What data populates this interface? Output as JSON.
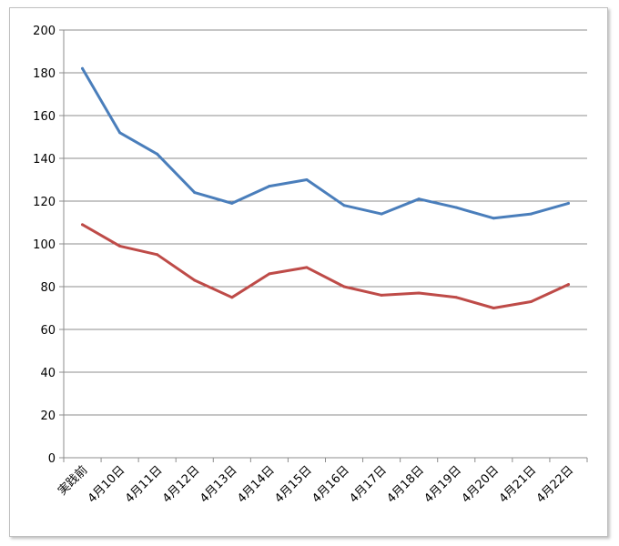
{
  "chart_data": {
    "type": "line",
    "categories": [
      "実践前",
      "4月10日",
      "4月11日",
      "4月12日",
      "4月13日",
      "4月14日",
      "4月15日",
      "4月16日",
      "4月17日",
      "4月18日",
      "4月19日",
      "4月20日",
      "4月21日",
      "4月22日"
    ],
    "series": [
      {
        "color": "#4a7ebb",
        "values": [
          182,
          152,
          142,
          124,
          119,
          127,
          130,
          118,
          114,
          121,
          117,
          112,
          114,
          119
        ]
      },
      {
        "color": "#be4b48",
        "values": [
          109,
          99,
          95,
          83,
          75,
          86,
          89,
          80,
          76,
          77,
          75,
          70,
          73,
          81
        ]
      }
    ],
    "ylim": [
      0,
      200
    ],
    "yticks": [
      "0",
      "20",
      "40",
      "60",
      "80",
      "100",
      "120",
      "140",
      "160",
      "180",
      "200"
    ],
    "grid": true,
    "legend": "none"
  }
}
